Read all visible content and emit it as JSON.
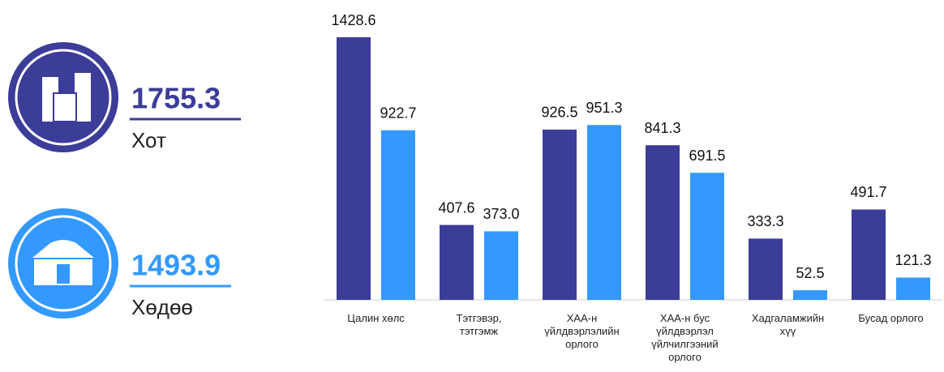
{
  "kpis": [
    {
      "value": "1755.3",
      "label": "Хот",
      "color": "#3c3c99"
    },
    {
      "value": "1493.9",
      "label": "Хөдөө",
      "color": "#3399ff"
    }
  ],
  "chart_data": {
    "type": "bar",
    "categories": [
      "Цалин хөлс",
      "Тэтгэвэр,\nтэтгэмж",
      "ХАА-н\nүйлдвэрлэлийн\nорлого",
      "ХАА-н бус\nүйлдвэрлэл\nүйлчилгээний\nорлого",
      "Хадгаламжийн\nхүү",
      "Бусад орлого"
    ],
    "series": [
      {
        "color": "#3c3c99",
        "values": [
          1428.6,
          407.6,
          926.5,
          841.3,
          333.3,
          491.7
        ],
        "value_labels": [
          "1428.6",
          "407.6",
          "926.5",
          "841.3",
          "333.3",
          "491.7"
        ]
      },
      {
        "color": "#3399ff",
        "values": [
          922.7,
          373.0,
          951.3,
          691.5,
          52.5,
          121.3
        ],
        "value_labels": [
          "922.7",
          "373.0",
          "951.3",
          "691.5",
          "52.5",
          "121.3"
        ]
      }
    ]
  }
}
